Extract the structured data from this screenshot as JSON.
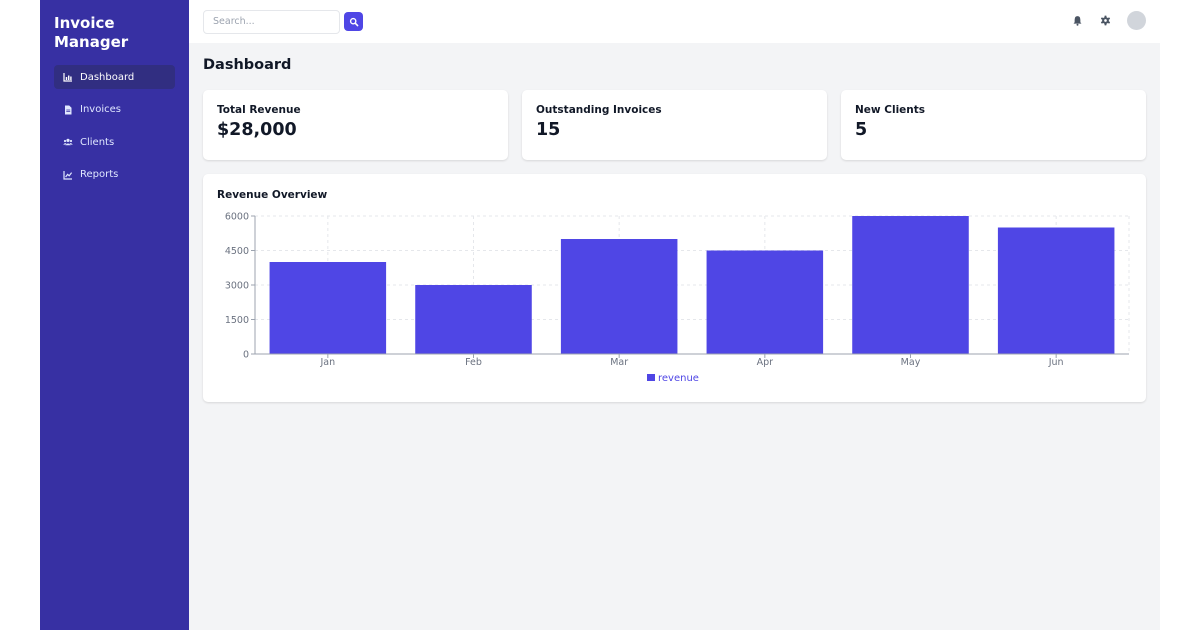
{
  "app": {
    "title": "Invoice Manager",
    "title_line1": "Invoice",
    "title_line2": "Manager"
  },
  "sidebar": {
    "items": [
      {
        "label": "Dashboard",
        "icon": "chart-bar-icon",
        "active": true
      },
      {
        "label": "Invoices",
        "icon": "file-icon",
        "active": false
      },
      {
        "label": "Clients",
        "icon": "users-icon",
        "active": false
      },
      {
        "label": "Reports",
        "icon": "chart-line-icon",
        "active": false
      }
    ]
  },
  "topbar": {
    "search": {
      "placeholder": "Search...",
      "value": "",
      "button_icon": "search-icon"
    },
    "icons": [
      "bell-icon",
      "gear-icon"
    ],
    "avatar": "avatar"
  },
  "page": {
    "title": "Dashboard"
  },
  "cards": [
    {
      "label": "Total Revenue",
      "value": "$28,000"
    },
    {
      "label": "Outstanding Invoices",
      "value": "15"
    },
    {
      "label": "New Clients",
      "value": "5"
    }
  ],
  "chart": {
    "title": "Revenue Overview"
  },
  "chart_data": {
    "type": "bar",
    "title": "Revenue Overview",
    "categories": [
      "Jan",
      "Feb",
      "Mar",
      "Apr",
      "May",
      "Jun"
    ],
    "series": [
      {
        "name": "revenue",
        "values": [
          4000,
          3000,
          5000,
          4500,
          6000,
          5500
        ]
      }
    ],
    "yticks": [
      0,
      1500,
      3000,
      4500,
      6000
    ],
    "ylim": [
      0,
      6000
    ],
    "xlabel": "",
    "ylabel": "",
    "grid": true,
    "legend": "bottom-center"
  },
  "colors": {
    "sidebar_bg": "#3730a3",
    "sidebar_active": "#312e81",
    "accent": "#4f46e5",
    "bar": "#4f46e5",
    "page_bg": "#f3f4f6"
  }
}
